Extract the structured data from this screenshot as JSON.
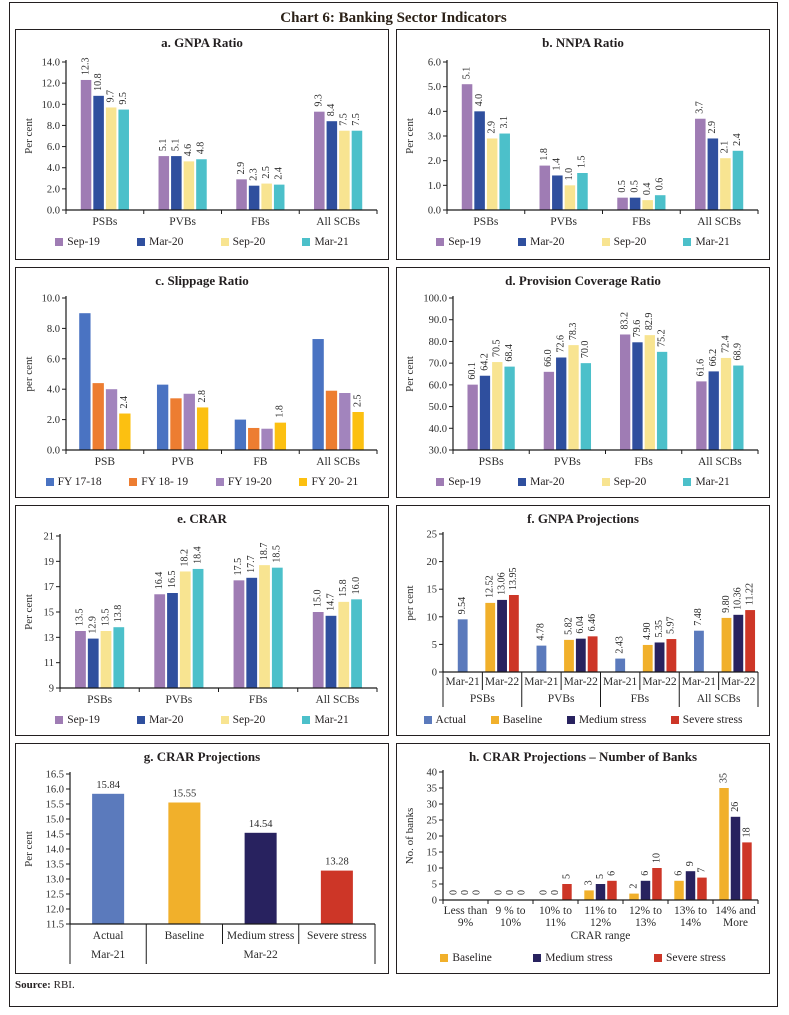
{
  "figure": {
    "title": "Chart 6: Banking Sector Indicators",
    "source_label": "Source:",
    "source_value": "RBI."
  },
  "chart_data": [
    {
      "key": "a",
      "type": "bar",
      "title": "a. GNPA Ratio",
      "ylabel": "Per cent",
      "ymin": 0,
      "ymax": 14,
      "ystep": 2,
      "yfmt": 1,
      "lfmt": 1,
      "label_style": "rotated",
      "legend_position": "bottom",
      "grid": false,
      "series": [
        {
          "name": "Sep-19",
          "color": "#9f7cb4"
        },
        {
          "name": "Mar-20",
          "color": "#2f4f9e"
        },
        {
          "name": "Sep-20",
          "color": "#f8e491"
        },
        {
          "name": "Mar-21",
          "color": "#4cc0ca"
        }
      ],
      "groups": [
        {
          "label": "PSBs",
          "values": [
            12.3,
            10.8,
            9.7,
            9.5
          ]
        },
        {
          "label": "PVBs",
          "values": [
            5.1,
            5.1,
            4.6,
            4.8
          ]
        },
        {
          "label": "FBs",
          "values": [
            2.9,
            2.3,
            2.5,
            2.4
          ]
        },
        {
          "label": "All SCBs",
          "values": [
            9.3,
            8.4,
            7.5,
            7.5
          ]
        }
      ]
    },
    {
      "key": "b",
      "type": "bar",
      "title": "b. NNPA Ratio",
      "ylabel": "Per cent",
      "ymin": 0,
      "ymax": 6,
      "ystep": 1,
      "yfmt": 1,
      "lfmt": 1,
      "label_style": "rotated",
      "legend_position": "bottom",
      "grid": false,
      "series": [
        {
          "name": "Sep-19",
          "color": "#9f7cb4"
        },
        {
          "name": "Mar-20",
          "color": "#2f4f9e"
        },
        {
          "name": "Sep-20",
          "color": "#f8e491"
        },
        {
          "name": "Mar-21",
          "color": "#4cc0ca"
        }
      ],
      "groups": [
        {
          "label": "PSBs",
          "values": [
            5.1,
            4.0,
            2.9,
            3.1
          ]
        },
        {
          "label": "PVBs",
          "values": [
            1.8,
            1.4,
            1.0,
            1.5
          ]
        },
        {
          "label": "FBs",
          "values": [
            0.5,
            0.5,
            0.4,
            0.6
          ]
        },
        {
          "label": "All SCBs",
          "values": [
            3.7,
            2.9,
            2.1,
            2.4
          ]
        }
      ]
    },
    {
      "key": "c",
      "type": "bar",
      "title": "c. Slippage Ratio",
      "ylabel": "per cent",
      "ymin": 0,
      "ymax": 10,
      "ystep": 2,
      "yfmt": 1,
      "lfmt": 1,
      "label_style": "rotated",
      "label_series": [
        3
      ],
      "legend_position": "bottom",
      "grid": false,
      "series": [
        {
          "name": "FY 17-18",
          "color": "#4a73c2"
        },
        {
          "name": "FY 18- 19",
          "color": "#ed7d31"
        },
        {
          "name": "FY 19-20",
          "color": "#a284bd"
        },
        {
          "name": "FY 20- 21",
          "color": "#fcc011"
        }
      ],
      "groups": [
        {
          "label": "PSB",
          "values": [
            9.0,
            4.4,
            4.0,
            2.4
          ]
        },
        {
          "label": "PVB",
          "values": [
            4.3,
            3.4,
            3.7,
            2.8
          ]
        },
        {
          "label": "FB",
          "values": [
            2.0,
            1.45,
            1.4,
            1.8
          ]
        },
        {
          "label": "All SCBs",
          "values": [
            7.3,
            3.9,
            3.75,
            2.5
          ]
        }
      ]
    },
    {
      "key": "d",
      "type": "bar",
      "title": "d. Provision Coverage Ratio",
      "ylabel": "Per cent",
      "ymin": 30,
      "ymax": 100,
      "ystep": 10,
      "yfmt": 1,
      "lfmt": 1,
      "label_style": "rotated",
      "legend_position": "bottom",
      "grid": false,
      "series": [
        {
          "name": "Sep-19",
          "color": "#9f7cb4"
        },
        {
          "name": "Mar-20",
          "color": "#2f4f9e"
        },
        {
          "name": "Sep-20",
          "color": "#f8e491"
        },
        {
          "name": "Mar-21",
          "color": "#4cc0ca"
        }
      ],
      "groups": [
        {
          "label": "PSBs",
          "values": [
            60.1,
            64.2,
            70.5,
            68.4
          ]
        },
        {
          "label": "PVBs",
          "values": [
            66.0,
            72.6,
            78.3,
            70.0
          ]
        },
        {
          "label": "FBs",
          "values": [
            83.2,
            79.6,
            82.9,
            75.2
          ]
        },
        {
          "label": "All SCBs",
          "values": [
            61.6,
            66.2,
            72.4,
            68.9
          ]
        }
      ]
    },
    {
      "key": "e",
      "type": "bar",
      "title": "e. CRAR",
      "ylabel": "Per cent",
      "ymin": 9,
      "ymax": 21,
      "ystep": 2,
      "yfmt": 0,
      "lfmt": 1,
      "label_style": "rotated",
      "legend_position": "bottom",
      "grid": false,
      "series": [
        {
          "name": "Sep-19",
          "color": "#9f7cb4"
        },
        {
          "name": "Mar-20",
          "color": "#2f4f9e"
        },
        {
          "name": "Sep-20",
          "color": "#f8e491"
        },
        {
          "name": "Mar-21",
          "color": "#4cc0ca"
        }
      ],
      "groups": [
        {
          "label": "PSBs",
          "values": [
            13.5,
            12.9,
            13.5,
            13.8
          ]
        },
        {
          "label": "PVBs",
          "values": [
            16.4,
            16.5,
            18.2,
            18.4
          ]
        },
        {
          "label": "FBs",
          "values": [
            17.5,
            17.7,
            18.7,
            18.5
          ]
        },
        {
          "label": "All SCBs",
          "values": [
            15.0,
            14.7,
            15.8,
            16.0
          ]
        }
      ]
    },
    {
      "key": "f",
      "type": "bar",
      "title": "f. GNPA Projections",
      "ylabel": "per cent",
      "ymin": 0,
      "ymax": 25,
      "ystep": 5,
      "yfmt": 0,
      "lfmt": 2,
      "label_style": "rotated",
      "legend_position": "bottom",
      "grid": false,
      "series": [
        {
          "name": "Actual",
          "color": "#5b7abc"
        },
        {
          "name": "Baseline",
          "color": "#f1b02b"
        },
        {
          "name": "Medium stress",
          "color": "#28225f"
        },
        {
          "name": "Severe stress",
          "color": "#cd3627"
        }
      ],
      "groups": [
        {
          "label": "Mar-21",
          "values": [
            9.54,
            null,
            null,
            null
          ]
        },
        {
          "label": "Mar-22",
          "values": [
            null,
            12.52,
            13.06,
            13.95
          ]
        },
        {
          "label": "Mar-21",
          "values": [
            4.78,
            null,
            null,
            null
          ]
        },
        {
          "label": "Mar-22",
          "values": [
            null,
            5.82,
            6.04,
            6.46
          ]
        },
        {
          "label": "Mar-21",
          "values": [
            2.43,
            null,
            null,
            null
          ]
        },
        {
          "label": "Mar-22",
          "values": [
            null,
            4.9,
            5.35,
            5.97
          ]
        },
        {
          "label": "Mar-21",
          "values": [
            7.48,
            null,
            null,
            null
          ]
        },
        {
          "label": "Mar-22",
          "values": [
            null,
            9.8,
            10.36,
            11.22
          ]
        }
      ],
      "axis2": {
        "rows": [
          {
            "label": "PSBs",
            "span": 2
          },
          {
            "label": "PVBs",
            "span": 2
          },
          {
            "label": "FBs",
            "span": 2
          },
          {
            "label": "All SCBs",
            "span": 2
          }
        ]
      }
    },
    {
      "key": "g",
      "type": "bar",
      "title": "g. CRAR Projections",
      "ylabel": "Per cent",
      "ymin": 11.5,
      "ymax": 16.5,
      "ystep": 0.5,
      "yfmt": 1,
      "lfmt": 2,
      "label_style": "horizontal",
      "legend_position": "none",
      "grid": false,
      "series": [
        {
          "name": "Actual",
          "color": "#5b7abc"
        },
        {
          "name": "Baseline",
          "color": "#f1b02b"
        },
        {
          "name": "Medium stress",
          "color": "#28225f"
        },
        {
          "name": "Severe stress",
          "color": "#cd3627"
        }
      ],
      "groups": [
        {
          "label": "Actual",
          "values": [
            15.84,
            null,
            null,
            null
          ]
        },
        {
          "label": "Baseline",
          "values": [
            null,
            15.55,
            null,
            null
          ]
        },
        {
          "label": "Medium stress",
          "values": [
            null,
            null,
            14.54,
            null
          ]
        },
        {
          "label": "Severe stress",
          "values": [
            null,
            null,
            null,
            13.28
          ]
        }
      ],
      "axis2": {
        "rows": [
          {
            "label": "Mar-21",
            "span": 1
          },
          {
            "label": "Mar-22",
            "span": 3
          }
        ]
      }
    },
    {
      "key": "h",
      "type": "bar",
      "title": "h. CRAR Projections – Number of Banks",
      "ylabel": "No. of banks",
      "xtitle": "CRAR range",
      "ymin": 0,
      "ymax": 40,
      "ystep": 5,
      "yfmt": 0,
      "lfmt": 0,
      "label_style": "rotated",
      "legend_position": "bottom",
      "grid": false,
      "series": [
        {
          "name": "Baseline",
          "color": "#f1b02b"
        },
        {
          "name": "Medium stress",
          "color": "#28225f"
        },
        {
          "name": "Severe stress",
          "color": "#cd3627"
        }
      ],
      "groups": [
        {
          "label": [
            "Less than",
            "9%"
          ],
          "values": [
            0,
            0,
            0
          ]
        },
        {
          "label": [
            "9 % to",
            "10%"
          ],
          "values": [
            0,
            0,
            0
          ]
        },
        {
          "label": [
            "10% to",
            "11%"
          ],
          "values": [
            0,
            0,
            5
          ]
        },
        {
          "label": [
            "11% to",
            "12%"
          ],
          "values": [
            3,
            5,
            6
          ]
        },
        {
          "label": [
            "12% to",
            "13%"
          ],
          "values": [
            2,
            6,
            10
          ]
        },
        {
          "label": [
            "13% to",
            "14%"
          ],
          "values": [
            6,
            9,
            7
          ]
        },
        {
          "label": [
            "14% and",
            "More"
          ],
          "values": [
            35,
            26,
            18
          ]
        }
      ]
    }
  ]
}
